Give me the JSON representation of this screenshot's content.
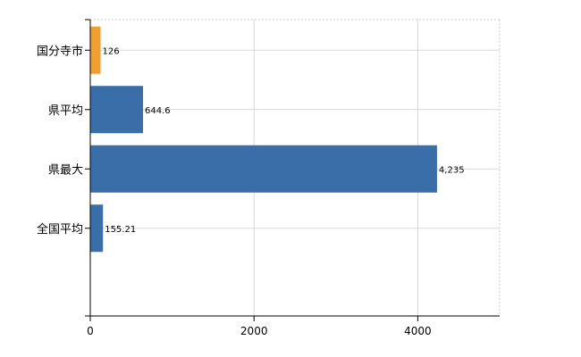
{
  "chart_data": {
    "type": "bar",
    "orientation": "horizontal",
    "categories": [
      "国分寺市",
      "県平均",
      "県最大",
      "全国平均"
    ],
    "values": [
      126,
      644.6,
      4235,
      155.21
    ],
    "data_labels": [
      "126",
      "644.6",
      "4,235",
      "155.21"
    ],
    "bar_colors": [
      "#f0a033",
      "#3a6ea8",
      "#3a6ea8",
      "#3a6ea8"
    ],
    "xlim": [
      0,
      5000
    ],
    "x_ticks": [
      0,
      2000,
      4000
    ],
    "x_tick_labels": [
      "0",
      "2000",
      "4000"
    ],
    "grid": true,
    "title": "",
    "xlabel": "",
    "ylabel": ""
  }
}
